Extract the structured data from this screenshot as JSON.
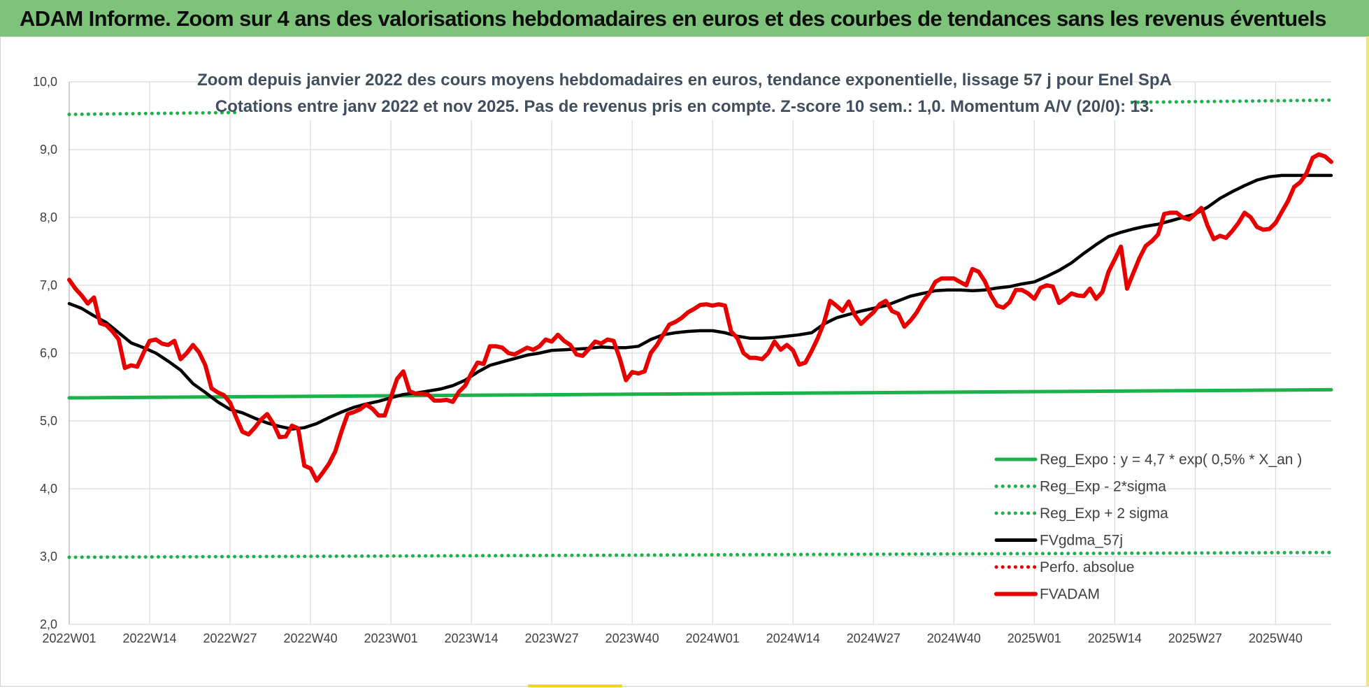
{
  "header": {
    "title": "ADAM Informe. Zoom sur 4 ans des valorisations hebdomadaires en euros et des courbes de tendances sans les revenus éventuels"
  },
  "colors": {
    "header_bg": "#7ec37a",
    "reg_expo": "#1db14b",
    "fvgdma": "#000000",
    "perfo": "#e00000",
    "fvadam": "#e80000",
    "grid": "#dadada"
  },
  "chart_data": {
    "type": "line",
    "title": "Zoom depuis janvier 2022 des cours moyens hebdomadaires en euros, tendance exponentielle, lissage 57 j pour Enel SpA",
    "subtitle": "Cotations entre janv 2022 et nov 2025. Pas de revenus pris en compte. Z-score 10 sem.: 1,0. Momentum A/V (20/0): 13.",
    "xlabel": "",
    "ylabel": "",
    "ylim": [
      2.0,
      10.0
    ],
    "y_ticks": [
      "2,0",
      "3,0",
      "4,0",
      "5,0",
      "6,0",
      "7,0",
      "8,0",
      "9,0",
      "10,0"
    ],
    "x_ticks": [
      "2022W01",
      "2022W14",
      "2022W27",
      "2022W40",
      "2023W01",
      "2023W14",
      "2023W27",
      "2023W40",
      "2024W01",
      "2024W14",
      "2024W27",
      "2024W40",
      "2025W01",
      "2025W14",
      "2025W27",
      "2025W40"
    ],
    "x_tick_weeks": [
      0,
      13,
      26,
      39,
      52,
      65,
      78,
      91,
      104,
      117,
      130,
      143,
      156,
      169,
      182,
      195
    ],
    "week_range": [
      0,
      204
    ],
    "grid": true,
    "legend_position": "bottom-right",
    "series": [
      {
        "name": "Reg_Expo : y = 4,7 * exp( 0,5% *  X_an )",
        "style": "solid",
        "color": "#1db14b",
        "x": [
          0,
          204
        ],
        "y": [
          5.34,
          5.46
        ]
      },
      {
        "name": "Reg_Exp - 2*sigma",
        "style": "dotted",
        "color": "#1db14b",
        "x": [
          0,
          204
        ],
        "y": [
          2.99,
          3.06
        ]
      },
      {
        "name": "Reg_Exp + 2 sigma",
        "style": "dotted",
        "color": "#1db14b",
        "x": [
          0,
          204
        ],
        "y": [
          9.52,
          9.73
        ]
      },
      {
        "name": "FVgdma_57j",
        "style": "solid",
        "color": "#000000",
        "x": [
          0,
          2,
          4,
          6,
          8,
          10,
          12,
          14,
          16,
          18,
          20,
          22,
          24,
          26,
          28,
          30,
          32,
          34,
          36,
          38,
          40,
          42,
          44,
          46,
          48,
          50,
          52,
          54,
          56,
          58,
          60,
          62,
          64,
          66,
          68,
          70,
          72,
          74,
          76,
          78,
          80,
          82,
          84,
          86,
          88,
          90,
          92,
          94,
          96,
          98,
          100,
          102,
          104,
          106,
          108,
          110,
          112,
          114,
          116,
          118,
          120,
          122,
          124,
          126,
          128,
          130,
          132,
          134,
          136,
          138,
          140,
          142,
          144,
          146,
          148,
          150,
          152,
          154,
          156,
          158,
          160,
          162,
          164,
          166,
          168,
          170,
          172,
          174,
          176,
          178,
          180,
          182,
          184,
          186,
          188,
          190,
          192,
          194,
          196,
          198,
          200,
          202,
          204
        ],
        "y": [
          6.73,
          6.66,
          6.55,
          6.45,
          6.3,
          6.15,
          6.08,
          6.0,
          5.88,
          5.75,
          5.55,
          5.42,
          5.28,
          5.17,
          5.12,
          5.04,
          4.97,
          4.92,
          4.88,
          4.9,
          4.96,
          5.05,
          5.13,
          5.2,
          5.25,
          5.29,
          5.34,
          5.39,
          5.41,
          5.44,
          5.47,
          5.52,
          5.6,
          5.72,
          5.82,
          5.87,
          5.92,
          5.97,
          6.0,
          6.04,
          6.05,
          6.06,
          6.07,
          6.09,
          6.08,
          6.08,
          6.1,
          6.2,
          6.27,
          6.3,
          6.32,
          6.33,
          6.33,
          6.3,
          6.25,
          6.22,
          6.22,
          6.23,
          6.25,
          6.27,
          6.3,
          6.43,
          6.52,
          6.57,
          6.62,
          6.66,
          6.7,
          6.77,
          6.84,
          6.88,
          6.92,
          6.93,
          6.93,
          6.92,
          6.93,
          6.96,
          6.98,
          7.02,
          7.05,
          7.13,
          7.22,
          7.33,
          7.47,
          7.6,
          7.72,
          7.78,
          7.83,
          7.87,
          7.9,
          7.95,
          8.0,
          8.05,
          8.15,
          8.28,
          8.38,
          8.47,
          8.55,
          8.6,
          8.62,
          8.62,
          8.62,
          8.62,
          8.62
        ]
      },
      {
        "name": "Perfo. absolue",
        "style": "dotted",
        "color": "#e00000",
        "x": [],
        "y": []
      },
      {
        "name": "FVADAM",
        "style": "solid",
        "color": "#e80000",
        "x": [
          0,
          1,
          2,
          3,
          4,
          5,
          6,
          7,
          8,
          9,
          10,
          11,
          12,
          13,
          14,
          15,
          16,
          17,
          18,
          19,
          20,
          21,
          22,
          23,
          24,
          25,
          26,
          27,
          28,
          29,
          30,
          31,
          32,
          33,
          34,
          35,
          36,
          37,
          38,
          39,
          40,
          41,
          42,
          43,
          44,
          45,
          46,
          47,
          48,
          49,
          50,
          51,
          52,
          53,
          54,
          55,
          56,
          57,
          58,
          59,
          60,
          61,
          62,
          63,
          64,
          65,
          66,
          67,
          68,
          69,
          70,
          71,
          72,
          73,
          74,
          75,
          76,
          77,
          78,
          79,
          80,
          81,
          82,
          83,
          84,
          85,
          86,
          87,
          88,
          89,
          90,
          91,
          92,
          93,
          94,
          95,
          96,
          97,
          98,
          99,
          100,
          101,
          102,
          103,
          104,
          105,
          106,
          107,
          108,
          109,
          110,
          111,
          112,
          113,
          114,
          115,
          116,
          117,
          118,
          119,
          120,
          121,
          122,
          123,
          124,
          125,
          126,
          127,
          128,
          129,
          130,
          131,
          132,
          133,
          134,
          135,
          136,
          137,
          138,
          139,
          140,
          141,
          142,
          143,
          144,
          145,
          146,
          147,
          148,
          149,
          150,
          151,
          152,
          153,
          154,
          155,
          156,
          157,
          158,
          159,
          160,
          161,
          162,
          163,
          164,
          165,
          166,
          167,
          168,
          169,
          170,
          171,
          172,
          173,
          174,
          175,
          176,
          177,
          178,
          179,
          180,
          181,
          182,
          183,
          184,
          185,
          186,
          187,
          188,
          189,
          190,
          191,
          192,
          193,
          194,
          195,
          196,
          197,
          198,
          199,
          200,
          201,
          202,
          203,
          204
        ],
        "y": [
          7.08,
          6.95,
          6.85,
          6.73,
          6.82,
          6.44,
          6.41,
          6.32,
          6.2,
          5.78,
          5.82,
          5.8,
          6.0,
          6.18,
          6.2,
          6.14,
          6.12,
          6.18,
          5.91,
          6.0,
          6.12,
          6.01,
          5.82,
          5.48,
          5.42,
          5.38,
          5.27,
          5.05,
          4.84,
          4.8,
          4.9,
          5.02,
          5.1,
          4.96,
          4.76,
          4.77,
          4.93,
          4.89,
          4.34,
          4.3,
          4.12,
          4.24,
          4.37,
          4.55,
          4.84,
          5.1,
          5.13,
          5.17,
          5.24,
          5.18,
          5.08,
          5.08,
          5.35,
          5.62,
          5.73,
          5.44,
          5.4,
          5.4,
          5.39,
          5.3,
          5.3,
          5.31,
          5.28,
          5.43,
          5.52,
          5.7,
          5.86,
          5.84,
          6.1,
          6.1,
          6.08,
          6.0,
          5.98,
          6.03,
          6.08,
          6.05,
          6.1,
          6.2,
          6.17,
          6.27,
          6.18,
          6.12,
          5.98,
          5.96,
          6.06,
          6.17,
          6.14,
          6.2,
          6.18,
          5.92,
          5.6,
          5.72,
          5.7,
          5.73,
          6.0,
          6.12,
          6.27,
          6.42,
          6.46,
          6.52,
          6.6,
          6.65,
          6.71,
          6.72,
          6.7,
          6.72,
          6.7,
          6.32,
          6.22,
          6.0,
          5.93,
          5.93,
          5.91,
          6.0,
          6.17,
          6.05,
          6.12,
          6.04,
          5.83,
          5.86,
          6.03,
          6.22,
          6.45,
          6.77,
          6.7,
          6.62,
          6.76,
          6.56,
          6.43,
          6.52,
          6.6,
          6.72,
          6.77,
          6.62,
          6.58,
          6.39,
          6.48,
          6.6,
          6.76,
          6.88,
          7.05,
          7.1,
          7.1,
          7.1,
          7.05,
          7.0,
          7.24,
          7.2,
          7.06,
          6.85,
          6.7,
          6.67,
          6.75,
          6.93,
          6.93,
          6.88,
          6.8,
          6.96,
          7.0,
          6.98,
          6.74,
          6.8,
          6.88,
          6.85,
          6.84,
          6.95,
          6.8,
          6.9,
          7.2,
          7.38,
          7.57,
          6.95,
          7.18,
          7.4,
          7.58,
          7.65,
          7.75,
          8.05,
          8.07,
          8.07,
          8.0,
          7.97,
          8.05,
          8.14,
          7.88,
          7.68,
          7.73,
          7.7,
          7.8,
          7.92,
          8.07,
          8.0,
          7.86,
          7.82,
          7.83,
          7.92,
          8.08,
          8.24,
          8.45,
          8.52,
          8.65,
          8.88,
          8.93,
          8.9,
          8.82
        ]
      }
    ]
  }
}
